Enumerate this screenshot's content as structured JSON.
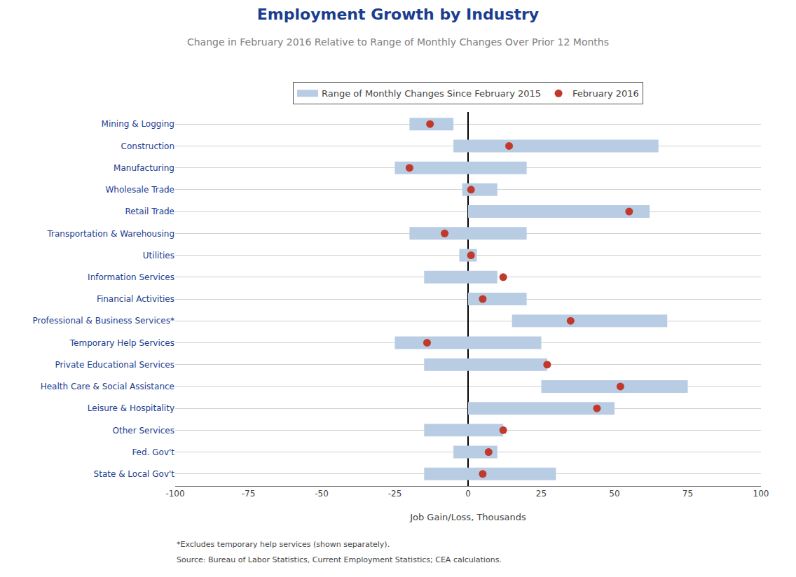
{
  "chart_data": {
    "type": "bar",
    "orientation": "horizontal",
    "title": "Employment Growth by Industry",
    "subtitle": "Change in February 2016 Relative to Range of Monthly Changes Over Prior 12 Months",
    "xlabel": "Job Gain/Loss, Thousands",
    "categories": [
      "Mining & Logging",
      "Construction",
      "Manufacturing",
      "Wholesale Trade",
      "Retail Trade",
      "Transportation & Warehousing",
      "Utilities",
      "Information Services",
      "Financial Activities",
      "Professional & Business Services*",
      "Temporary Help Services",
      "Private Educational Services",
      "Health Care & Social Assistance",
      "Leisure & Hospitality",
      "Other Services",
      "Fed. Gov't",
      "State & Local Gov't"
    ],
    "series": [
      {
        "name": "Range of Monthly Changes Since February 2015",
        "type": "range",
        "color": "#b8cce4",
        "low": [
          -20,
          -5,
          -25,
          -2,
          0,
          -20,
          -3,
          -15,
          0,
          15,
          -25,
          -15,
          25,
          0,
          -15,
          -5,
          -15
        ],
        "high": [
          -5,
          65,
          20,
          10,
          62,
          20,
          3,
          10,
          20,
          68,
          25,
          27,
          75,
          50,
          12,
          10,
          30
        ]
      },
      {
        "name": "February 2016",
        "type": "scatter",
        "marker": "circle",
        "color": "#c0392b",
        "values": [
          -13,
          14,
          -20,
          1,
          55,
          -8,
          1,
          12,
          5,
          35,
          -14,
          27,
          52,
          44,
          12,
          7,
          5
        ]
      }
    ],
    "xlim": [
      -100,
      100
    ],
    "xticks": [
      -100,
      -75,
      -50,
      -25,
      0,
      25,
      50,
      75,
      100
    ],
    "grid": true,
    "legend": "top",
    "annotations": [
      "*Excludes temporary help services (shown separately).",
      "Source: Bureau of Labor Statistics, Current Employment Statistics; CEA calculations."
    ]
  }
}
